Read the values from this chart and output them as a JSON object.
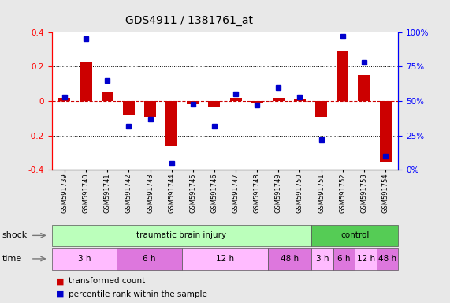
{
  "title": "GDS4911 / 1381761_at",
  "samples": [
    "GSM591739",
    "GSM591740",
    "GSM591741",
    "GSM591742",
    "GSM591743",
    "GSM591744",
    "GSM591745",
    "GSM591746",
    "GSM591747",
    "GSM591748",
    "GSM591749",
    "GSM591750",
    "GSM591751",
    "GSM591752",
    "GSM591753",
    "GSM591754"
  ],
  "bar_values": [
    0.02,
    0.23,
    0.05,
    -0.08,
    -0.09,
    -0.26,
    -0.02,
    -0.03,
    0.02,
    -0.01,
    0.02,
    0.01,
    -0.09,
    0.29,
    0.15,
    -0.35
  ],
  "dot_values": [
    53,
    95,
    65,
    32,
    37,
    5,
    48,
    32,
    55,
    47,
    60,
    53,
    22,
    97,
    78,
    10
  ],
  "bar_color": "#cc0000",
  "dot_color": "#0000cc",
  "ylim_left": [
    -0.4,
    0.4
  ],
  "ylim_right": [
    0,
    100
  ],
  "yticks_left": [
    -0.4,
    -0.2,
    0.0,
    0.2,
    0.4
  ],
  "yticks_right": [
    0,
    25,
    50,
    75,
    100
  ],
  "ytick_labels_right": [
    "0%",
    "25%",
    "50%",
    "75%",
    "100%"
  ],
  "dotted_lines": [
    -0.2,
    0.2
  ],
  "shock_label": "shock",
  "time_label": "time",
  "shock_groups": [
    {
      "label": "traumatic brain injury",
      "start": 0,
      "end": 12,
      "color": "#bbffbb"
    },
    {
      "label": "control",
      "start": 12,
      "end": 16,
      "color": "#55cc55"
    }
  ],
  "time_groups": [
    {
      "label": "3 h",
      "start": 0,
      "end": 3,
      "color": "#ffbbff"
    },
    {
      "label": "6 h",
      "start": 3,
      "end": 6,
      "color": "#dd77dd"
    },
    {
      "label": "12 h",
      "start": 6,
      "end": 10,
      "color": "#ffbbff"
    },
    {
      "label": "48 h",
      "start": 10,
      "end": 12,
      "color": "#dd77dd"
    },
    {
      "label": "3 h",
      "start": 12,
      "end": 13,
      "color": "#ffbbff"
    },
    {
      "label": "6 h",
      "start": 13,
      "end": 14,
      "color": "#dd77dd"
    },
    {
      "label": "12 h",
      "start": 14,
      "end": 15,
      "color": "#ffbbff"
    },
    {
      "label": "48 h",
      "start": 15,
      "end": 16,
      "color": "#dd77dd"
    }
  ],
  "legend_bar_label": "transformed count",
  "legend_dot_label": "percentile rank within the sample",
  "bg_color": "#e8e8e8",
  "plot_bg": "#ffffff"
}
